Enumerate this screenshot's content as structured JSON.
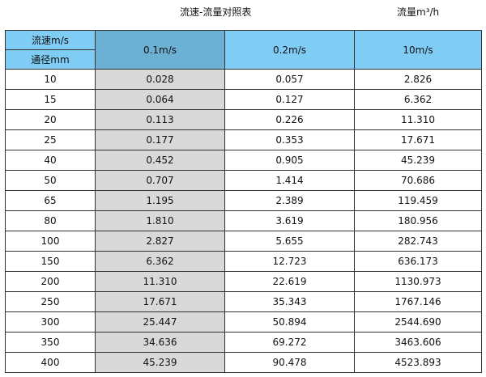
{
  "title": "流速-流量对照表",
  "unit": "流量m³/h",
  "header": {
    "velocity_label": "流速m/s",
    "diameter_label": "通径mm",
    "columns": [
      "0.1m/s",
      "0.2m/s",
      "10m/s"
    ]
  },
  "colors": {
    "header": "#7fcdf4",
    "header_selected": "#6cb1d4",
    "highlight_column": "#d9d9d9"
  },
  "rows": [
    [
      "10",
      "0.028",
      "0.057",
      "2.826"
    ],
    [
      "15",
      "0.064",
      "0.127",
      "6.362"
    ],
    [
      "20",
      "0.113",
      "0.226",
      "11.310"
    ],
    [
      "25",
      "0.177",
      "0.353",
      "17.671"
    ],
    [
      "40",
      "0.452",
      "0.905",
      "45.239"
    ],
    [
      "50",
      "0.707",
      "1.414",
      "70.686"
    ],
    [
      "65",
      "1.195",
      "2.389",
      "119.459"
    ],
    [
      "80",
      "1.810",
      "3.619",
      "180.956"
    ],
    [
      "100",
      "2.827",
      "5.655",
      "282.743"
    ],
    [
      "150",
      "6.362",
      "12.723",
      "636.173"
    ],
    [
      "200",
      "11.310",
      "22.619",
      "1130.973"
    ],
    [
      "250",
      "17.671",
      "35.343",
      "1767.146"
    ],
    [
      "300",
      "25.447",
      "50.894",
      "2544.690"
    ],
    [
      "350",
      "34.636",
      "69.272",
      "3463.606"
    ],
    [
      "400",
      "45.239",
      "90.478",
      "4523.893"
    ]
  ]
}
